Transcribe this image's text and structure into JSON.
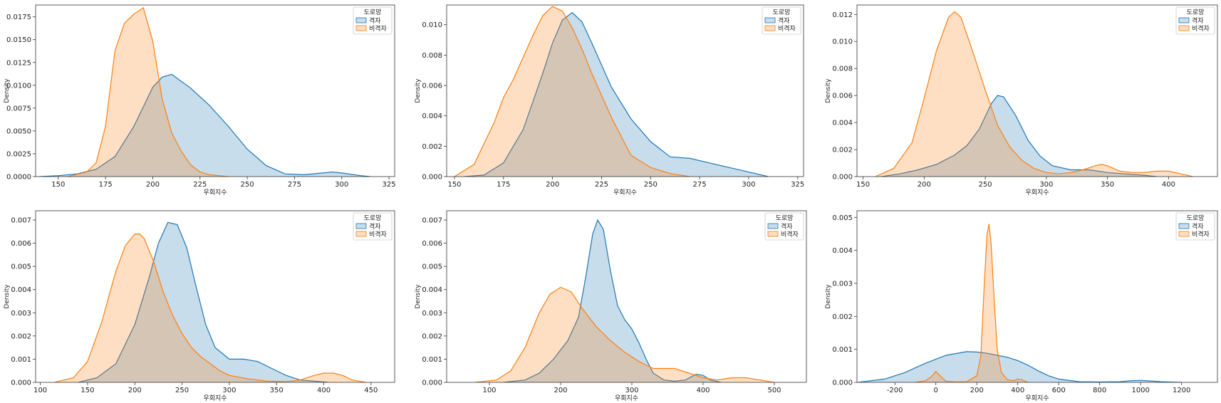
{
  "colors": {
    "series_a": "#1f77b4",
    "series_b": "#ff7f0e"
  },
  "chart_data": [
    {
      "type": "area",
      "xlabel": "우회지수",
      "ylabel": "Density",
      "xlim": [
        138,
        328
      ],
      "ylim": [
        0,
        0.0188
      ],
      "xticks": [
        150,
        175,
        200,
        225,
        250,
        275,
        300,
        325
      ],
      "xtick_labels": [
        "150",
        "175",
        "200",
        "225",
        "250",
        "275",
        "300",
        "325"
      ],
      "yticks": [
        0,
        0.0025,
        0.005,
        0.0075,
        0.01,
        0.0125,
        0.015,
        0.0175
      ],
      "ytick_labels": [
        "0.0000",
        "0.0025",
        "0.0050",
        "0.0075",
        "0.0100",
        "0.0125",
        "0.0150",
        "0.0175"
      ],
      "legend": {
        "title": "도로망",
        "placement": "top-right"
      },
      "series": [
        {
          "name": "격자",
          "x": [
            140,
            150,
            160,
            170,
            180,
            190,
            200,
            205,
            210,
            220,
            230,
            240,
            250,
            260,
            270,
            280,
            290,
            295,
            300,
            310,
            315
          ],
          "y": [
            0,
            0.0001,
            0.0003,
            0.0008,
            0.0022,
            0.0055,
            0.0098,
            0.0109,
            0.0112,
            0.0097,
            0.0078,
            0.0055,
            0.003,
            0.0012,
            0.0003,
            0.0002,
            0.0004,
            0.0005,
            0.0004,
            0.0001,
            0
          ]
        },
        {
          "name": "비격자",
          "x": [
            155,
            165,
            170,
            175,
            180,
            185,
            190,
            195,
            200,
            205,
            210,
            215,
            220,
            225,
            230,
            240
          ],
          "y": [
            0,
            0.0005,
            0.0015,
            0.0055,
            0.0138,
            0.0168,
            0.0178,
            0.0185,
            0.0148,
            0.0085,
            0.0048,
            0.0028,
            0.0013,
            0.0005,
            0.0002,
            0
          ]
        }
      ]
    },
    {
      "type": "area",
      "xlabel": "우회지수",
      "ylabel": "Density",
      "xlim": [
        146,
        328
      ],
      "ylim": [
        0,
        0.0113
      ],
      "xticks": [
        150,
        175,
        200,
        225,
        250,
        275,
        300,
        325
      ],
      "xtick_labels": [
        "150",
        "175",
        "200",
        "225",
        "250",
        "275",
        "300",
        "325"
      ],
      "yticks": [
        0,
        0.002,
        0.004,
        0.006,
        0.008,
        0.01
      ],
      "ytick_labels": [
        "0.000",
        "0.002",
        "0.004",
        "0.006",
        "0.008",
        "0.010"
      ],
      "legend": {
        "title": "도로망",
        "placement": "top-right"
      },
      "series": [
        {
          "name": "격자",
          "x": [
            155,
            165,
            175,
            185,
            195,
            200,
            205,
            210,
            215,
            220,
            230,
            240,
            250,
            260,
            270,
            280,
            290,
            300,
            310
          ],
          "y": [
            0,
            0.0001,
            0.0009,
            0.0031,
            0.0068,
            0.0088,
            0.0103,
            0.0108,
            0.0102,
            0.0088,
            0.0059,
            0.0038,
            0.0023,
            0.0013,
            0.0012,
            0.0009,
            0.0006,
            0.0003,
            0
          ]
        },
        {
          "name": "비격자",
          "x": [
            150,
            160,
            170,
            175,
            180,
            190,
            195,
            200,
            205,
            210,
            215,
            220,
            230,
            240,
            250,
            260,
            270
          ],
          "y": [
            0,
            0.0008,
            0.0035,
            0.0052,
            0.0064,
            0.0093,
            0.0106,
            0.0112,
            0.0109,
            0.0098,
            0.0084,
            0.0068,
            0.0039,
            0.0014,
            0.0006,
            0.0002,
            0
          ]
        }
      ]
    },
    {
      "type": "area",
      "xlabel": "우회지수",
      "ylabel": "Density",
      "xlim": [
        145,
        440
      ],
      "ylim": [
        0,
        0.0127
      ],
      "xticks": [
        150,
        200,
        250,
        300,
        350,
        400
      ],
      "xtick_labels": [
        "150",
        "200",
        "250",
        "300",
        "350",
        "400"
      ],
      "yticks": [
        0,
        0.002,
        0.004,
        0.006,
        0.008,
        0.01,
        0.012
      ],
      "ytick_labels": [
        "0.000",
        "0.002",
        "0.004",
        "0.006",
        "0.008",
        "0.010",
        "0.012"
      ],
      "legend": {
        "title": "도로망",
        "placement": "top-right"
      },
      "series": [
        {
          "name": "격자",
          "x": [
            165,
            180,
            195,
            210,
            225,
            235,
            245,
            255,
            260,
            265,
            275,
            285,
            295,
            305,
            320,
            335,
            350,
            365,
            380,
            390
          ],
          "y": [
            0,
            0.0002,
            0.0005,
            0.0009,
            0.0016,
            0.0023,
            0.0035,
            0.0054,
            0.006,
            0.0059,
            0.0045,
            0.0027,
            0.0015,
            0.0008,
            0.0005,
            0.0005,
            0.0003,
            0.0002,
            0.0001,
            0
          ]
        },
        {
          "name": "비격자",
          "x": [
            160,
            175,
            190,
            200,
            210,
            220,
            225,
            230,
            240,
            250,
            260,
            270,
            280,
            290,
            300,
            310,
            320,
            330,
            340,
            345,
            350,
            360,
            370,
            380,
            390,
            400,
            410,
            420
          ],
          "y": [
            0,
            0.0006,
            0.0025,
            0.0058,
            0.0093,
            0.0118,
            0.0122,
            0.0118,
            0.0092,
            0.0064,
            0.0038,
            0.0022,
            0.0012,
            0.0006,
            0.0003,
            0.0002,
            0.0003,
            0.0005,
            0.0008,
            0.0009,
            0.0008,
            0.0004,
            0.0003,
            0.0003,
            0.0004,
            0.0004,
            0.0002,
            0
          ]
        }
      ]
    },
    {
      "type": "area",
      "xlabel": "우회지수",
      "ylabel": "Density",
      "xlim": [
        95,
        475
      ],
      "ylim": [
        0,
        0.0074
      ],
      "xticks": [
        100,
        150,
        200,
        250,
        300,
        350,
        400,
        450
      ],
      "xtick_labels": [
        "100",
        "150",
        "200",
        "250",
        "300",
        "350",
        "400",
        "450"
      ],
      "yticks": [
        0,
        0.001,
        0.002,
        0.003,
        0.004,
        0.005,
        0.006,
        0.007
      ],
      "ytick_labels": [
        "0.000",
        "0.001",
        "0.002",
        "0.003",
        "0.004",
        "0.005",
        "0.006",
        "0.007"
      ],
      "legend": {
        "title": "도로망",
        "placement": "top-right"
      },
      "series": [
        {
          "name": "격자",
          "x": [
            140,
            160,
            180,
            200,
            215,
            225,
            235,
            245,
            255,
            265,
            275,
            285,
            300,
            315,
            330,
            345,
            360,
            375,
            390,
            405
          ],
          "y": [
            0,
            0.0002,
            0.0008,
            0.0025,
            0.0045,
            0.006,
            0.0069,
            0.0068,
            0.0058,
            0.0041,
            0.0025,
            0.0015,
            0.001,
            0.001,
            0.0009,
            0.0006,
            0.0003,
            0.0001,
            5e-05,
            0
          ]
        },
        {
          "name": "비격자",
          "x": [
            115,
            135,
            150,
            165,
            180,
            190,
            200,
            205,
            210,
            220,
            230,
            240,
            250,
            260,
            270,
            280,
            290,
            300,
            320,
            340,
            360,
            375,
            390,
            400,
            410,
            420,
            430,
            445
          ],
          "y": [
            0,
            0.0002,
            0.0009,
            0.0026,
            0.0048,
            0.0059,
            0.0064,
            0.0064,
            0.0062,
            0.0052,
            0.0039,
            0.0029,
            0.0021,
            0.0015,
            0.0011,
            0.0008,
            0.0005,
            0.0003,
            0.00015,
            5e-05,
            3e-05,
            0.0001,
            0.0003,
            0.0004,
            0.0004,
            0.0003,
            0.0001,
            0
          ]
        }
      ]
    },
    {
      "type": "area",
      "xlabel": "우회지수",
      "ylabel": "Density",
      "xlim": [
        40,
        545
      ],
      "ylim": [
        0,
        0.0074
      ],
      "xticks": [
        100,
        200,
        300,
        400,
        500
      ],
      "xtick_labels": [
        "100",
        "200",
        "300",
        "400",
        "500"
      ],
      "yticks": [
        0,
        0.001,
        0.002,
        0.003,
        0.004,
        0.005,
        0.006,
        0.007
      ],
      "ytick_labels": [
        "0.000",
        "0.001",
        "0.002",
        "0.003",
        "0.004",
        "0.005",
        "0.006",
        "0.007"
      ],
      "legend": {
        "title": "도로망",
        "placement": "top-right"
      },
      "series": [
        {
          "name": "격자",
          "x": [
            120,
            150,
            170,
            190,
            210,
            225,
            235,
            245,
            252,
            260,
            270,
            280,
            290,
            300,
            310,
            320,
            330,
            345,
            360,
            375,
            390,
            400,
            410,
            425
          ],
          "y": [
            0,
            0.0001,
            0.0004,
            0.001,
            0.0018,
            0.0028,
            0.0045,
            0.0064,
            0.007,
            0.0066,
            0.0048,
            0.0033,
            0.0027,
            0.0023,
            0.0017,
            0.001,
            0.0004,
            0.0001,
            5e-05,
            0.0001,
            0.00035,
            0.0003,
            0.0001,
            0
          ]
        },
        {
          "name": "비격자",
          "x": [
            80,
            110,
            130,
            150,
            170,
            185,
            200,
            215,
            230,
            250,
            270,
            290,
            310,
            330,
            345,
            360,
            380,
            400,
            420,
            440,
            460,
            480,
            500
          ],
          "y": [
            0,
            0.0001,
            0.0005,
            0.0015,
            0.003,
            0.0038,
            0.0041,
            0.0039,
            0.0032,
            0.0024,
            0.0018,
            0.0013,
            0.0009,
            0.0006,
            0.0006,
            0.0006,
            0.0004,
            0.0002,
            0.0001,
            0.0002,
            0.0002,
            0.0001,
            0
          ]
        }
      ]
    },
    {
      "type": "area",
      "xlabel": "우회지수",
      "ylabel": "Density",
      "xlim": [
        -385,
        1375
      ],
      "ylim": [
        0,
        0.0052
      ],
      "xticks": [
        -200,
        0,
        200,
        400,
        600,
        800,
        1000,
        1200
      ],
      "xtick_labels": [
        "-200",
        "0",
        "200",
        "400",
        "600",
        "800",
        "1000",
        "1200"
      ],
      "yticks": [
        0,
        0.001,
        0.002,
        0.003,
        0.004,
        0.005
      ],
      "ytick_labels": [
        "0.000",
        "0.001",
        "0.002",
        "0.003",
        "0.004",
        "0.005"
      ],
      "legend": {
        "title": "도로망",
        "placement": "top-right"
      },
      "series": [
        {
          "name": "격자",
          "x": [
            -380,
            -250,
            -150,
            -50,
            50,
            150,
            200,
            250,
            300,
            350,
            400,
            450,
            500,
            550,
            600,
            700,
            800,
            900,
            950,
            1000,
            1050,
            1100,
            1200
          ],
          "y": [
            0,
            0.0001,
            0.0003,
            0.00058,
            0.00082,
            0.00093,
            0.00092,
            0.00088,
            0.00082,
            0.00076,
            0.00066,
            0.00052,
            0.00035,
            0.0002,
            0.0001,
            2e-05,
            1e-05,
            2e-05,
            5e-05,
            6e-05,
            4e-05,
            2e-05,
            0
          ]
        },
        {
          "name": "비격자",
          "x": [
            -100,
            -50,
            -20,
            0,
            20,
            50,
            100,
            150,
            200,
            220,
            235,
            250,
            260,
            270,
            285,
            300,
            320,
            350,
            380,
            400,
            420,
            450
          ],
          "y": [
            0,
            5e-05,
            0.00018,
            0.00033,
            0.0002,
            3e-05,
            1e-05,
            2e-05,
            0.0002,
            0.0008,
            0.0028,
            0.0045,
            0.0048,
            0.0042,
            0.0025,
            0.001,
            0.0003,
            8e-05,
            5e-05,
            0.0001,
            8e-05,
            0
          ]
        }
      ]
    }
  ]
}
